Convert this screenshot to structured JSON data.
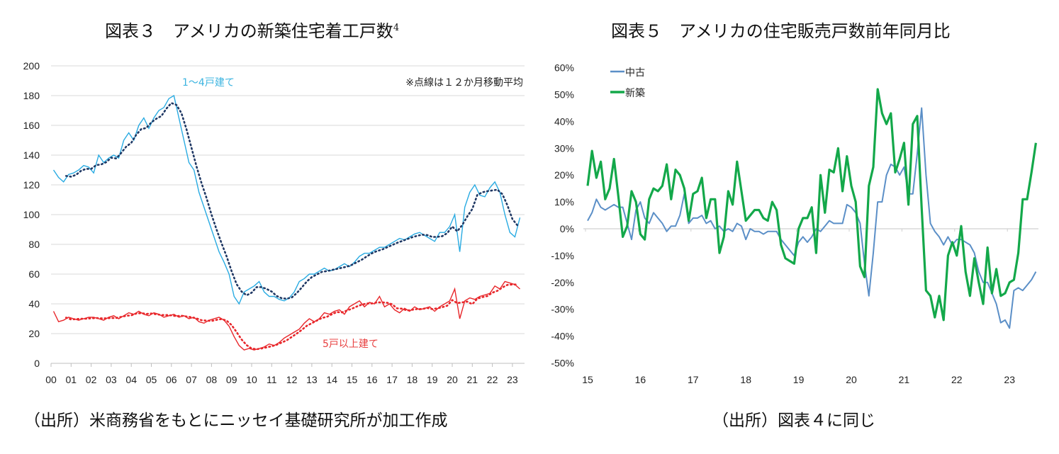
{
  "titles": {
    "left": "図表３　アメリカの新築住宅着工戸数",
    "left_sup": "4",
    "right": "図表５　アメリカの住宅販売戸数前年同月比"
  },
  "captions": {
    "left": "（出所）米商務省をもとにニッセイ基礎研究所が加工作成",
    "right": "（出所）図表４に同じ"
  },
  "chart_data": [
    {
      "type": "line",
      "title": "図表３　アメリカの新築住宅着工戸数4",
      "xlabel": "",
      "ylabel": "",
      "frequency": "quarterly (approximate reading of monthly series)",
      "start": "2000Q1",
      "ylim": [
        0,
        200
      ],
      "yticks": [
        0,
        20,
        40,
        60,
        80,
        100,
        120,
        140,
        160,
        180,
        200
      ],
      "xticks": [
        "00",
        "01",
        "02",
        "03",
        "04",
        "05",
        "06",
        "07",
        "08",
        "09",
        "10",
        "11",
        "12",
        "13",
        "14",
        "15",
        "16",
        "17",
        "18",
        "19",
        "20",
        "21",
        "22",
        "23"
      ],
      "grid": true,
      "note": "※点線は１２か月移動平均",
      "colors": {
        "single": "#29abe2",
        "single_ma": "#1f3864",
        "multi": "#e8262a",
        "multi_ma": "#e8262a"
      },
      "series": [
        {
          "name": "1～4戸建て",
          "values": [
            130,
            125,
            122,
            127,
            128,
            130,
            133,
            132,
            128,
            140,
            135,
            138,
            140,
            138,
            150,
            155,
            150,
            160,
            165,
            158,
            165,
            170,
            172,
            178,
            180,
            165,
            150,
            135,
            130,
            115,
            105,
            95,
            85,
            75,
            68,
            60,
            45,
            40,
            48,
            50,
            52,
            55,
            48,
            45,
            45,
            43,
            42,
            44,
            48,
            55,
            57,
            60,
            60,
            62,
            64,
            62,
            63,
            65,
            67,
            65,
            68,
            72,
            74,
            74,
            76,
            78,
            78,
            80,
            82,
            84,
            83,
            85,
            87,
            88,
            86,
            84,
            82,
            88,
            88,
            92,
            100,
            75,
            105,
            115,
            120,
            113,
            112,
            118,
            122,
            115,
            100,
            88,
            85,
            98
          ]
        },
        {
          "name": "5戸以上建て",
          "values": [
            35,
            28,
            29,
            31,
            30,
            29,
            30,
            31,
            31,
            30,
            29,
            31,
            32,
            30,
            32,
            34,
            33,
            35,
            33,
            32,
            34,
            33,
            31,
            32,
            33,
            31,
            32,
            30,
            31,
            28,
            27,
            29,
            30,
            31,
            29,
            25,
            18,
            12,
            9,
            10,
            9,
            10,
            11,
            13,
            12,
            14,
            17,
            19,
            21,
            23,
            27,
            30,
            28,
            30,
            34,
            33,
            35,
            36,
            33,
            38,
            40,
            42,
            38,
            41,
            40,
            45,
            38,
            40,
            36,
            34,
            37,
            35,
            38,
            36,
            37,
            38,
            35,
            38,
            40,
            42,
            50,
            30,
            42,
            44,
            43,
            45,
            46,
            47,
            52,
            50,
            55,
            54,
            53,
            50
          ]
        }
      ]
    },
    {
      "type": "line",
      "title": "図表５　アメリカの住宅販売戸数前年同月比",
      "xlabel": "",
      "ylabel": "",
      "frequency": "monthly",
      "start": "2015-01",
      "ylim": [
        -50,
        60
      ],
      "yticks": [
        "60%",
        "50%",
        "40%",
        "30%",
        "20%",
        "10%",
        "0%",
        "-10%",
        "-20%",
        "-30%",
        "-40%",
        "-50%"
      ],
      "xticks": [
        "15",
        "16",
        "17",
        "18",
        "19",
        "20",
        "21",
        "22",
        "23"
      ],
      "grid": false,
      "legend": "top-left",
      "colors": {
        "existing": "#5b8fc7",
        "new": "#13a84a"
      },
      "series": [
        {
          "name": "中古",
          "values": [
            3,
            6,
            11,
            8,
            7,
            8,
            9,
            8,
            8,
            2,
            -4,
            7,
            10,
            4,
            2,
            6,
            4,
            2,
            -1,
            1,
            1,
            5,
            13,
            2,
            4,
            4,
            5,
            2,
            3,
            0,
            1,
            -1,
            0,
            -1,
            2,
            1,
            -4,
            0,
            -1,
            -1,
            -2,
            -1,
            -1,
            -1,
            -4,
            -6,
            -8,
            -10,
            -5,
            -3,
            -5,
            -3,
            0,
            -1,
            1,
            3,
            2,
            2,
            2,
            9,
            8,
            6,
            2,
            -13,
            -25,
            -9,
            10,
            10,
            20,
            24,
            23,
            20,
            23,
            13,
            13,
            28,
            45,
            20,
            2,
            -1,
            -3,
            -6,
            -3,
            -6,
            -4,
            -4,
            -5,
            -6,
            -9,
            -16,
            -20,
            -20,
            -24,
            -28,
            -35,
            -34,
            -37,
            -23,
            -22,
            -23,
            -21,
            -19,
            -16
          ]
        },
        {
          "name": "新築",
          "values": [
            16,
            29,
            19,
            25,
            11,
            15,
            26,
            12,
            -3,
            1,
            14,
            10,
            -2,
            -4,
            11,
            15,
            14,
            16,
            24,
            11,
            22,
            20,
            15,
            3,
            13,
            14,
            19,
            4,
            11,
            11,
            -9,
            -3,
            14,
            9,
            25,
            14,
            3,
            5,
            7,
            7,
            4,
            3,
            10,
            7,
            -6,
            -11,
            -12,
            -13,
            0,
            4,
            4,
            8,
            -9,
            20,
            6,
            22,
            21,
            30,
            14,
            27,
            16,
            10,
            -14,
            -18,
            16,
            23,
            52,
            43,
            39,
            43,
            21,
            26,
            32,
            9,
            39,
            42,
            8,
            -23,
            -25,
            -33,
            -25,
            -34,
            -10,
            -5,
            -10,
            1,
            -16,
            -25,
            -11,
            -20,
            -28,
            -7,
            -24,
            -15,
            -25,
            -24,
            -20,
            -19,
            -9,
            11,
            11,
            21,
            32
          ]
        }
      ]
    }
  ]
}
